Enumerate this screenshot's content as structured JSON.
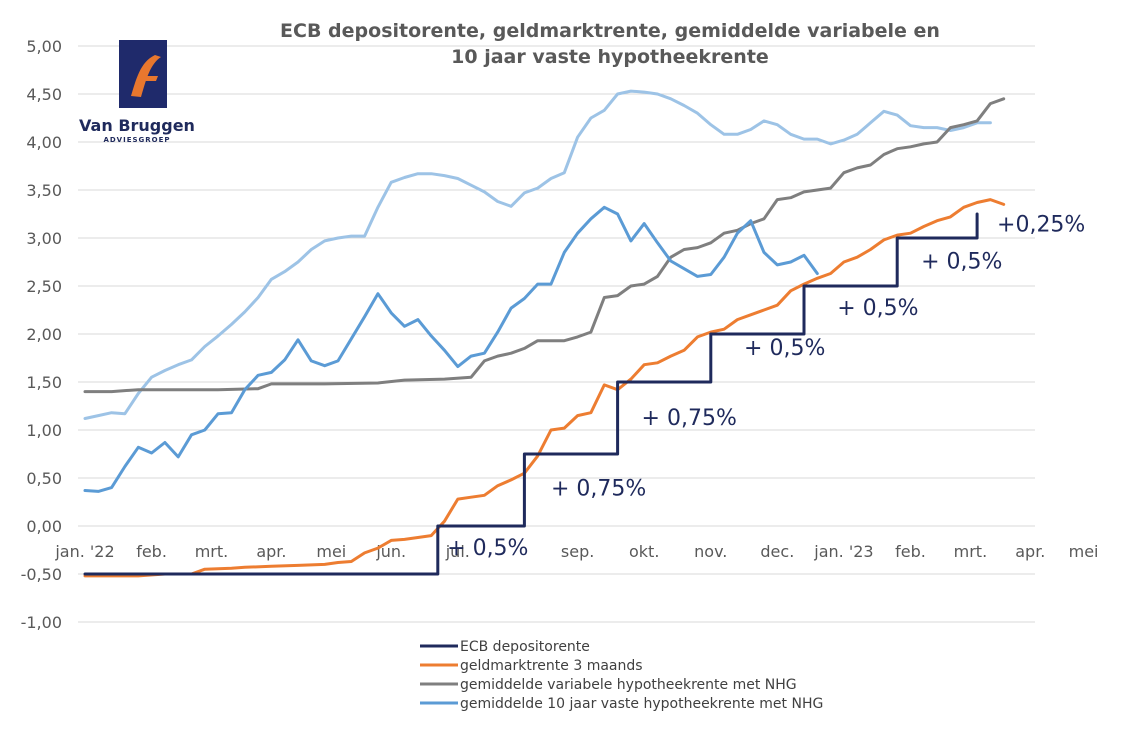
{
  "logo": {
    "name": "Van Bruggen",
    "sub": "ADVIESGROEP",
    "monogram": "fi",
    "colors": {
      "box": "#1f2a6b",
      "mark": "#e8772e"
    }
  },
  "chart_data": {
    "type": "line",
    "title_lines": [
      "ECB depositorente, geldmarktrente, gemiddelde variabele en",
      "10 jaar vaste hypotheekrente"
    ],
    "ylim": [
      -1.0,
      5.0
    ],
    "yticks": [
      "5,00",
      "4,50",
      "4,00",
      "3,50",
      "3,00",
      "2,50",
      "2,00",
      "1,50",
      "1,00",
      "0,50",
      "0,00",
      "-0,50",
      "-1,00"
    ],
    "ytick_values": [
      5.0,
      4.5,
      4.0,
      3.5,
      3.0,
      2.5,
      2.0,
      1.5,
      1.0,
      0.5,
      0.0,
      -0.5,
      -1.0
    ],
    "x_range": [
      0,
      70
    ],
    "xticks": [
      {
        "label": "jan. '22",
        "x": 0
      },
      {
        "label": "feb.",
        "x": 5
      },
      {
        "label": "mrt.",
        "x": 9.5
      },
      {
        "label": "apr.",
        "x": 14
      },
      {
        "label": "mei",
        "x": 18.5
      },
      {
        "label": "jun.",
        "x": 23
      },
      {
        "label": "jul.",
        "x": 28
      },
      {
        "label": "sep.",
        "x": 37
      },
      {
        "label": "okt.",
        "x": 42
      },
      {
        "label": "nov.",
        "x": 47
      },
      {
        "label": "dec.",
        "x": 52
      },
      {
        "label": "jan. '23",
        "x": 57
      },
      {
        "label": "feb.",
        "x": 62
      },
      {
        "label": "mrt.",
        "x": 66.5
      },
      {
        "label": "apr.",
        "x": 71
      },
      {
        "label": "mei",
        "x": 75
      }
    ],
    "grid": true,
    "legend_position": "bottom",
    "series": [
      {
        "name": "ECB depositorente",
        "color": "#1f2a5c",
        "width": 3,
        "points": [
          [
            0,
            -0.5
          ],
          [
            26.5,
            -0.5
          ],
          [
            26.5,
            0
          ],
          [
            33,
            0
          ],
          [
            33,
            0.75
          ],
          [
            40,
            0.75
          ],
          [
            40,
            1.5
          ],
          [
            47,
            1.5
          ],
          [
            47,
            2.0
          ],
          [
            54,
            2.0
          ],
          [
            54,
            2.5
          ],
          [
            61,
            2.5
          ],
          [
            61,
            3.0
          ],
          [
            67,
            3.0
          ],
          [
            67,
            3.25
          ]
        ]
      },
      {
        "name": "geldmarktrente 3 maands",
        "color": "#ed7d31",
        "width": 3,
        "points": [
          [
            0,
            -0.52
          ],
          [
            4,
            -0.52
          ],
          [
            6,
            -0.5
          ],
          [
            8,
            -0.5
          ],
          [
            9,
            -0.45
          ],
          [
            11,
            -0.44
          ],
          [
            12,
            -0.43
          ],
          [
            14,
            -0.42
          ],
          [
            16,
            -0.41
          ],
          [
            18,
            -0.4
          ],
          [
            19,
            -0.38
          ],
          [
            20,
            -0.37
          ],
          [
            21,
            -0.28
          ],
          [
            22,
            -0.23
          ],
          [
            23,
            -0.15
          ],
          [
            24,
            -0.14
          ],
          [
            25,
            -0.12
          ],
          [
            26,
            -0.1
          ],
          [
            27,
            0.05
          ],
          [
            28,
            0.28
          ],
          [
            29,
            0.3
          ],
          [
            30,
            0.32
          ],
          [
            31,
            0.42
          ],
          [
            32,
            0.48
          ],
          [
            33,
            0.55
          ],
          [
            34,
            0.73
          ],
          [
            35,
            1.0
          ],
          [
            36,
            1.02
          ],
          [
            37,
            1.15
          ],
          [
            38,
            1.18
          ],
          [
            39,
            1.47
          ],
          [
            40,
            1.42
          ],
          [
            41,
            1.53
          ],
          [
            42,
            1.68
          ],
          [
            43,
            1.7
          ],
          [
            44,
            1.77
          ],
          [
            45,
            1.83
          ],
          [
            46,
            1.97
          ],
          [
            47,
            2.02
          ],
          [
            48,
            2.05
          ],
          [
            49,
            2.15
          ],
          [
            50,
            2.2
          ],
          [
            51,
            2.25
          ],
          [
            52,
            2.3
          ],
          [
            53,
            2.45
          ],
          [
            54,
            2.52
          ],
          [
            55,
            2.58
          ],
          [
            56,
            2.63
          ],
          [
            57,
            2.75
          ],
          [
            58,
            2.8
          ],
          [
            59,
            2.88
          ],
          [
            60,
            2.98
          ],
          [
            61,
            3.03
          ],
          [
            62,
            3.05
          ],
          [
            63,
            3.12
          ],
          [
            64,
            3.18
          ],
          [
            65,
            3.22
          ],
          [
            66,
            3.32
          ],
          [
            67,
            3.37
          ],
          [
            68,
            3.4
          ],
          [
            69,
            3.35
          ]
        ]
      },
      {
        "name": "gemiddelde variabele hypotheekrente met NHG",
        "color": "#7f7f7f",
        "width": 3,
        "points": [
          [
            0,
            1.4
          ],
          [
            2,
            1.4
          ],
          [
            4,
            1.42
          ],
          [
            6,
            1.42
          ],
          [
            10,
            1.42
          ],
          [
            13,
            1.43
          ],
          [
            14,
            1.48
          ],
          [
            16,
            1.48
          ],
          [
            18,
            1.48
          ],
          [
            22,
            1.49
          ],
          [
            24,
            1.52
          ],
          [
            27,
            1.53
          ],
          [
            29,
            1.55
          ],
          [
            30,
            1.72
          ],
          [
            31,
            1.77
          ],
          [
            32,
            1.8
          ],
          [
            33,
            1.85
          ],
          [
            34,
            1.93
          ],
          [
            35,
            1.93
          ],
          [
            36,
            1.93
          ],
          [
            37,
            1.97
          ],
          [
            38,
            2.02
          ],
          [
            39,
            2.38
          ],
          [
            40,
            2.4
          ],
          [
            41,
            2.5
          ],
          [
            42,
            2.52
          ],
          [
            43,
            2.6
          ],
          [
            44,
            2.8
          ],
          [
            45,
            2.88
          ],
          [
            46,
            2.9
          ],
          [
            47,
            2.95
          ],
          [
            48,
            3.05
          ],
          [
            49,
            3.08
          ],
          [
            50,
            3.15
          ],
          [
            51,
            3.2
          ],
          [
            52,
            3.4
          ],
          [
            53,
            3.42
          ],
          [
            54,
            3.48
          ],
          [
            55,
            3.5
          ],
          [
            56,
            3.52
          ],
          [
            57,
            3.68
          ],
          [
            58,
            3.73
          ],
          [
            59,
            3.76
          ],
          [
            60,
            3.87
          ],
          [
            61,
            3.93
          ],
          [
            62,
            3.95
          ],
          [
            63,
            3.98
          ],
          [
            64,
            4.0
          ],
          [
            65,
            4.15
          ],
          [
            66,
            4.18
          ],
          [
            67,
            4.22
          ],
          [
            68,
            4.4
          ],
          [
            69,
            4.45
          ]
        ]
      },
      {
        "name": "gemiddelde 10 jaar vaste hypotheekrente met NHG",
        "color": "#5b9bd5",
        "width": 3,
        "points": [
          [
            0,
            0.37
          ],
          [
            1,
            0.36
          ],
          [
            2,
            0.4
          ],
          [
            3,
            0.62
          ],
          [
            4,
            0.82
          ],
          [
            5,
            0.76
          ],
          [
            6,
            0.87
          ],
          [
            7,
            0.72
          ],
          [
            8,
            0.95
          ],
          [
            9,
            1.0
          ],
          [
            10,
            1.17
          ],
          [
            11,
            1.18
          ],
          [
            12,
            1.42
          ],
          [
            13,
            1.57
          ],
          [
            14,
            1.6
          ],
          [
            15,
            1.73
          ],
          [
            16,
            1.94
          ],
          [
            17,
            1.72
          ],
          [
            18,
            1.67
          ],
          [
            19,
            1.72
          ],
          [
            20,
            1.95
          ],
          [
            21,
            2.18
          ],
          [
            22,
            2.42
          ],
          [
            23,
            2.22
          ],
          [
            24,
            2.08
          ],
          [
            25,
            2.15
          ],
          [
            26,
            1.98
          ],
          [
            27,
            1.83
          ],
          [
            28,
            1.66
          ],
          [
            29,
            1.77
          ],
          [
            30,
            1.8
          ],
          [
            31,
            2.02
          ],
          [
            32,
            2.27
          ],
          [
            33,
            2.37
          ],
          [
            34,
            2.52
          ],
          [
            35,
            2.52
          ],
          [
            36,
            2.85
          ],
          [
            37,
            3.05
          ],
          [
            38,
            3.2
          ],
          [
            39,
            3.32
          ],
          [
            40,
            3.25
          ],
          [
            41,
            2.97
          ],
          [
            42,
            3.15
          ],
          [
            43,
            2.95
          ],
          [
            44,
            2.76
          ],
          [
            45,
            2.68
          ],
          [
            46,
            2.6
          ],
          [
            47,
            2.62
          ],
          [
            48,
            2.8
          ],
          [
            49,
            3.05
          ],
          [
            50,
            3.18
          ],
          [
            51,
            2.85
          ],
          [
            52,
            2.72
          ],
          [
            53,
            2.75
          ],
          [
            54,
            2.82
          ],
          [
            55,
            2.63
          ]
        ]
      },
      {
        "name": "",
        "color": "#9dc3e6",
        "width": 3,
        "points": [
          [
            0,
            1.12
          ],
          [
            1,
            1.15
          ],
          [
            2,
            1.18
          ],
          [
            3,
            1.17
          ],
          [
            4,
            1.38
          ],
          [
            5,
            1.55
          ],
          [
            6,
            1.62
          ],
          [
            7,
            1.68
          ],
          [
            8,
            1.73
          ],
          [
            9,
            1.87
          ],
          [
            10,
            1.98
          ],
          [
            11,
            2.1
          ],
          [
            12,
            2.23
          ],
          [
            13,
            2.38
          ],
          [
            14,
            2.57
          ],
          [
            15,
            2.65
          ],
          [
            16,
            2.75
          ],
          [
            17,
            2.88
          ],
          [
            18,
            2.97
          ],
          [
            19,
            3.0
          ],
          [
            20,
            3.02
          ],
          [
            21,
            3.02
          ],
          [
            22,
            3.32
          ],
          [
            23,
            3.58
          ],
          [
            24,
            3.63
          ],
          [
            25,
            3.67
          ],
          [
            26,
            3.67
          ],
          [
            27,
            3.65
          ],
          [
            28,
            3.62
          ],
          [
            29,
            3.55
          ],
          [
            30,
            3.48
          ],
          [
            31,
            3.38
          ],
          [
            32,
            3.33
          ],
          [
            33,
            3.47
          ],
          [
            34,
            3.52
          ],
          [
            35,
            3.62
          ],
          [
            36,
            3.68
          ],
          [
            37,
            4.05
          ],
          [
            38,
            4.25
          ],
          [
            39,
            4.33
          ],
          [
            40,
            4.5
          ],
          [
            41,
            4.53
          ],
          [
            42,
            4.52
          ],
          [
            43,
            4.5
          ],
          [
            44,
            4.45
          ],
          [
            45,
            4.38
          ],
          [
            46,
            4.3
          ],
          [
            47,
            4.18
          ],
          [
            48,
            4.08
          ],
          [
            49,
            4.08
          ],
          [
            50,
            4.13
          ],
          [
            51,
            4.22
          ],
          [
            52,
            4.18
          ],
          [
            53,
            4.08
          ],
          [
            54,
            4.03
          ],
          [
            55,
            4.03
          ],
          [
            56,
            3.98
          ],
          [
            57,
            4.02
          ],
          [
            58,
            4.08
          ],
          [
            59,
            4.2
          ],
          [
            60,
            4.32
          ],
          [
            61,
            4.28
          ],
          [
            62,
            4.17
          ],
          [
            63,
            4.15
          ],
          [
            64,
            4.15
          ],
          [
            65,
            4.12
          ],
          [
            66,
            4.15
          ],
          [
            67,
            4.2
          ],
          [
            68,
            4.2
          ]
        ]
      }
    ],
    "annotations": [
      {
        "text": "+ 0,5%",
        "x": 27.2,
        "y": -0.3
      },
      {
        "text": "+ 0,75%",
        "x": 35,
        "y": 0.32
      },
      {
        "text": "+ 0,75%",
        "x": 41.8,
        "y": 1.05
      },
      {
        "text": "+ 0,5%",
        "x": 49.5,
        "y": 1.78
      },
      {
        "text": "+ 0,5%",
        "x": 56.5,
        "y": 2.2
      },
      {
        "text": "+ 0,5%",
        "x": 62.8,
        "y": 2.68
      },
      {
        "text": "+0,25%",
        "x": 68.5,
        "y": 3.07
      }
    ],
    "legend": [
      {
        "label": "ECB depositorente",
        "color": "#1f2a5c"
      },
      {
        "label": "geldmarktrente 3 maands",
        "color": "#ed7d31"
      },
      {
        "label": "gemiddelde variabele hypotheekrente met NHG",
        "color": "#7f7f7f"
      },
      {
        "label": "gemiddelde 10 jaar vaste hypotheekrente met NHG",
        "color": "#5b9bd5"
      }
    ]
  }
}
